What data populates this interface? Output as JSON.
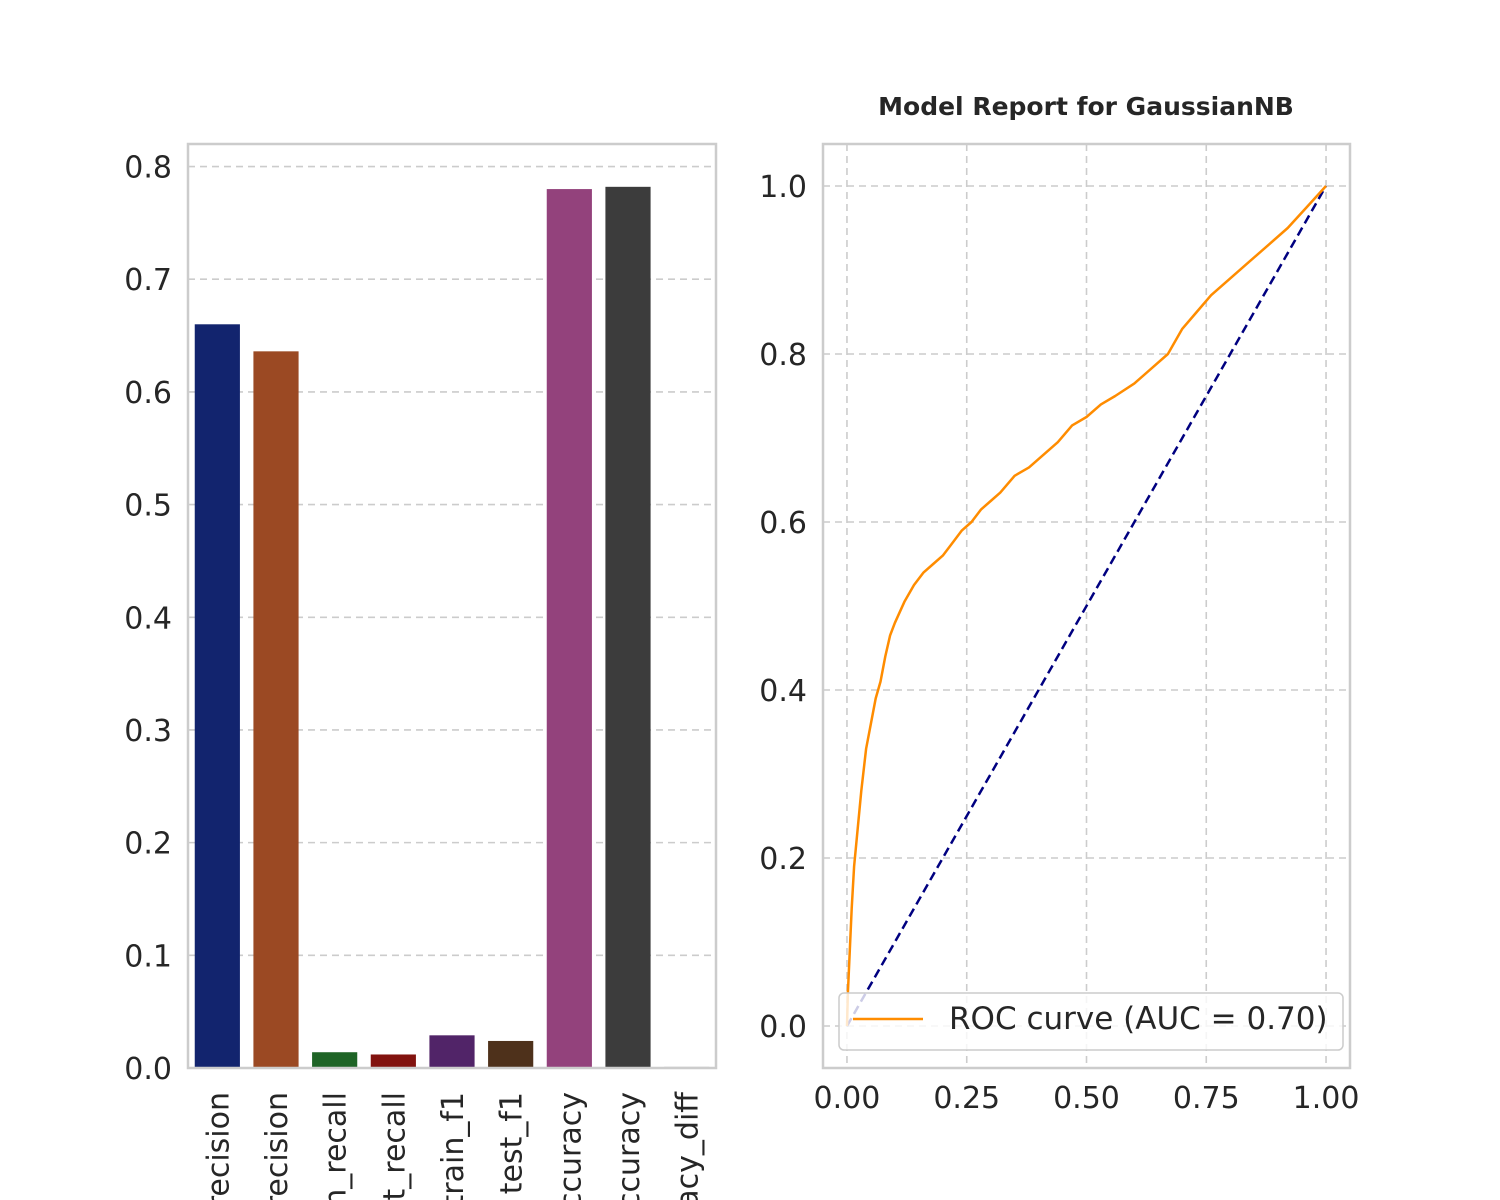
{
  "chart_data": [
    {
      "type": "bar",
      "title": "",
      "xlabel": "",
      "ylabel": "",
      "ylim": [
        0,
        0.82
      ],
      "yticks": [
        "0.0",
        "0.1",
        "0.2",
        "0.3",
        "0.4",
        "0.5",
        "0.6",
        "0.7",
        "0.8"
      ],
      "grid": "horizontal-dashed",
      "categories": [
        "train_precision",
        "test_precision",
        "train_recall",
        "test_recall",
        "train_f1",
        "test_f1",
        "train_accuracy",
        "test_accuracy",
        "accuracy_diff"
      ],
      "tick_labels_visible": [
        "recision",
        "recision",
        "n_recall",
        "t_recall",
        "train_f1",
        "test_f1",
        "ccuracy",
        "ccuracy",
        "acy_diff"
      ],
      "values": [
        0.66,
        0.636,
        0.014,
        0.012,
        0.029,
        0.024,
        0.78,
        0.782,
        0.001
      ],
      "colors": [
        "#12246e",
        "#9b4923",
        "#1e6426",
        "#82130f",
        "#512468",
        "#4e311b",
        "#93427c",
        "#3c3c3c",
        "#8c8c8c"
      ]
    },
    {
      "type": "line",
      "title": "Model Report for GaussianNB",
      "xlabel": "",
      "ylabel": "",
      "xlim": [
        -0.05,
        1.05
      ],
      "ylim": [
        -0.05,
        1.05
      ],
      "xticks": [
        "0.00",
        "0.25",
        "0.50",
        "0.75",
        "1.00"
      ],
      "yticks": [
        "0.0",
        "0.2",
        "0.4",
        "0.6",
        "0.8",
        "1.0"
      ],
      "grid": "both-dashed",
      "legend_position": "lower-right",
      "series": [
        {
          "name": "ROC curve (AUC = 0.70)",
          "color": "#ff8c00",
          "style": "solid",
          "x": [
            0.0,
            0.002,
            0.006,
            0.01,
            0.015,
            0.02,
            0.03,
            0.04,
            0.05,
            0.06,
            0.07,
            0.08,
            0.09,
            0.1,
            0.12,
            0.14,
            0.16,
            0.18,
            0.2,
            0.22,
            0.24,
            0.26,
            0.28,
            0.3,
            0.32,
            0.35,
            0.38,
            0.41,
            0.44,
            0.47,
            0.5,
            0.53,
            0.56,
            0.6,
            0.64,
            0.67,
            0.7,
            0.73,
            0.76,
            0.8,
            0.84,
            0.88,
            0.92,
            0.96,
            1.0
          ],
          "y": [
            0.0,
            0.04,
            0.09,
            0.14,
            0.19,
            0.22,
            0.28,
            0.33,
            0.36,
            0.39,
            0.41,
            0.44,
            0.465,
            0.48,
            0.505,
            0.525,
            0.54,
            0.55,
            0.56,
            0.575,
            0.59,
            0.6,
            0.615,
            0.625,
            0.635,
            0.655,
            0.665,
            0.68,
            0.695,
            0.715,
            0.725,
            0.74,
            0.75,
            0.765,
            0.785,
            0.8,
            0.83,
            0.85,
            0.87,
            0.89,
            0.91,
            0.93,
            0.95,
            0.975,
            1.0
          ]
        },
        {
          "name": "",
          "color": "#000080",
          "style": "dashed",
          "x": [
            0,
            1
          ],
          "y": [
            0,
            1
          ]
        }
      ]
    }
  ]
}
